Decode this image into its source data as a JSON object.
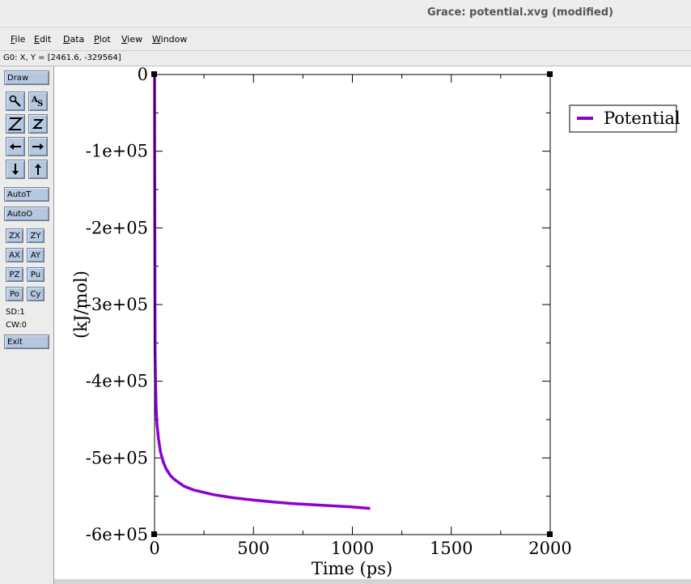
{
  "window": {
    "title": "Grace: potential.xvg (modified)"
  },
  "menu": [
    {
      "key": "F",
      "rest": "ile"
    },
    {
      "key": "E",
      "rest": "dit"
    },
    {
      "key": "D",
      "rest": "ata"
    },
    {
      "key": "P",
      "rest": "lot"
    },
    {
      "key": "V",
      "rest": "iew"
    },
    {
      "key": "W",
      "rest": "indow"
    }
  ],
  "locator": {
    "text": "G0: X, Y = [2461.6, -329564]"
  },
  "toolbox": {
    "draw": "Draw",
    "autot": "AutoT",
    "autoo": "AutoO",
    "zx": "ZX",
    "zy": "ZY",
    "ax": "AX",
    "ay": "AY",
    "pz": "PZ",
    "pu": "Pu",
    "po": "Po",
    "cy": "Cy",
    "sd": "SD:1",
    "cw": "CW:0",
    "exit": "Exit",
    "icons": [
      "zoom-icon",
      "autoscale-text-icon",
      "zoom-z-icon",
      "zoom-small-z-icon",
      "left-arrow-icon",
      "right-arrow-icon",
      "down-arrow-icon",
      "up-arrow-icon"
    ]
  },
  "chart_data": {
    "type": "line",
    "xlabel": "Time (ps)",
    "ylabel": "(kJ/mol)",
    "xlim": [
      0,
      2000
    ],
    "ylim": [
      -600000,
      0
    ],
    "xticks": [
      0,
      500,
      1000,
      1500,
      2000
    ],
    "xtick_labels": [
      "0",
      "500",
      "1000",
      "1500",
      "2000"
    ],
    "yticks": [
      0,
      -100000,
      -200000,
      -300000,
      -400000,
      -500000,
      -600000
    ],
    "ytick_labels": [
      "0",
      "-1e+05",
      "-2e+05",
      "-3e+05",
      "-4e+05",
      "-5e+05",
      "-6e+05"
    ],
    "grid": false,
    "legend_position": "top-right",
    "colors": {
      "series": "#8b00d4"
    },
    "series": [
      {
        "name": "Potential",
        "x": [
          0,
          1,
          2,
          3,
          5,
          8,
          12,
          20,
          30,
          45,
          60,
          80,
          100,
          150,
          200,
          300,
          400,
          500,
          600,
          700,
          800,
          900,
          1000,
          1090
        ],
        "y": [
          -2000,
          -130000,
          -270000,
          -360000,
          -400000,
          -435000,
          -455000,
          -475000,
          -492000,
          -506000,
          -515000,
          -523000,
          -528000,
          -537000,
          -542000,
          -548000,
          -552000,
          -555000,
          -557500,
          -559500,
          -561000,
          -562500,
          -564000,
          -566000
        ]
      }
    ]
  }
}
